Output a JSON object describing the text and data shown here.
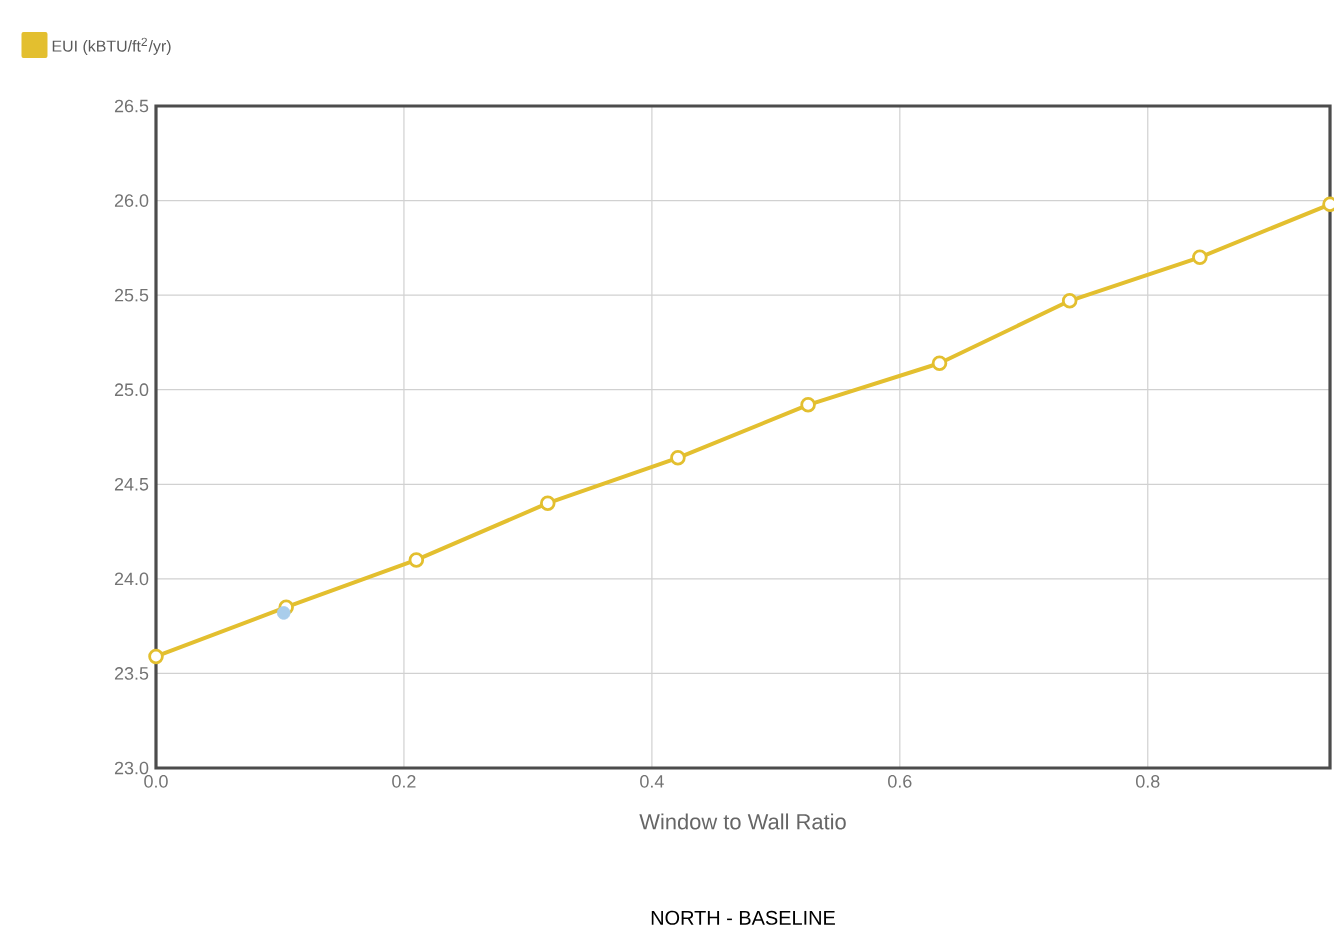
{
  "chart_data": {
    "type": "line",
    "xlabel": "Window to Wall Ratio",
    "annotations": [
      "NORTH - BASELINE"
    ],
    "xlim": [
      0,
      0.947
    ],
    "ylim": [
      23.0,
      26.5
    ],
    "xticks": [
      {
        "value": 0,
        "label": "0.0"
      },
      {
        "value": 0.2,
        "label": "0.2"
      },
      {
        "value": 0.4,
        "label": "0.4"
      },
      {
        "value": 0.6,
        "label": "0.6"
      },
      {
        "value": 0.8,
        "label": "0.8"
      }
    ],
    "yticks": [
      {
        "value": 23,
        "label": "23.0"
      },
      23.5,
      {
        "value": 24,
        "label": "24.0"
      },
      24.5,
      {
        "value": 25,
        "label": "25.0"
      },
      25.5,
      {
        "value": 26,
        "label": "26.0"
      },
      26.5
    ],
    "grid": true,
    "legend": "top left",
    "marker": "circle",
    "line_style": "solid",
    "series": [
      {
        "name": "EUI (kBTU/ft$^{2}$/yr)",
        "color": "#e3bf2f",
        "x": [
          0,
          0.105,
          0.21,
          0.316,
          0.421,
          0.526,
          0.632,
          0.737,
          0.842,
          0.947
        ],
        "values": [
          23.59,
          23.85,
          24.1,
          24.4,
          24.64,
          24.92,
          25.14,
          25.47,
          25.7,
          25.98
        ]
      },
      {
        "type": "scatter",
        "color": "#a9cdeb",
        "x": [
          0.103
        ],
        "values": [
          23.82
        ]
      }
    ]
  }
}
